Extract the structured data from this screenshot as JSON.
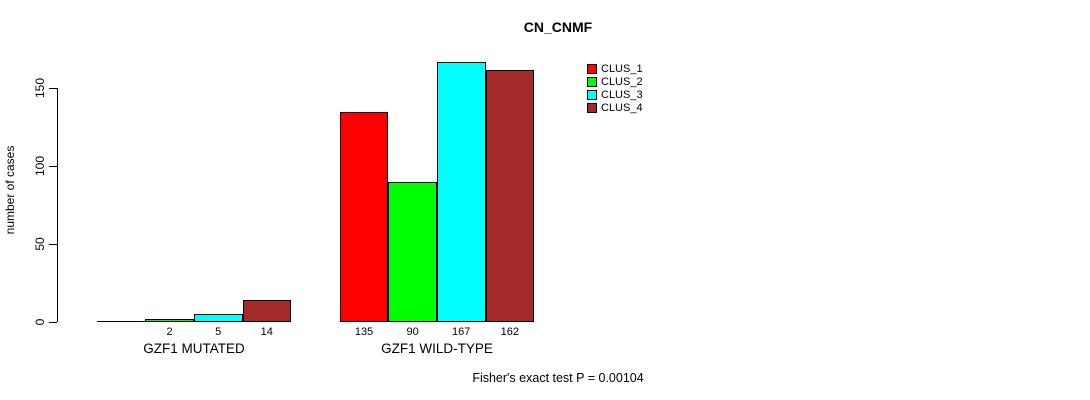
{
  "chart_data": {
    "type": "bar",
    "title": "CN_CNMF",
    "xlabel": "",
    "ylabel": "number of cases",
    "categories": [
      "GZF1 MUTATED",
      "GZF1 WILD-TYPE"
    ],
    "series": [
      {
        "name": "CLUS_1",
        "color": "#FF0000",
        "values": [
          0,
          135
        ]
      },
      {
        "name": "CLUS_2",
        "color": "#00FF00",
        "values": [
          2,
          90
        ]
      },
      {
        "name": "CLUS_3",
        "color": "#00FFFF",
        "values": [
          5,
          167
        ]
      },
      {
        "name": "CLUS_4",
        "color": "#A52A2A",
        "values": [
          14,
          162
        ]
      }
    ],
    "bar_value_labels": [
      [
        "",
        "2",
        "5",
        "14"
      ],
      [
        "135",
        "90",
        "167",
        "162"
      ]
    ],
    "y_ticks": [
      0,
      50,
      100,
      150
    ],
    "ylim": [
      0,
      175
    ],
    "grid": false,
    "legend_position": "top-right",
    "bar_border_color": "#000000",
    "annotation": "Fisher's exact test P = 0.00104"
  }
}
